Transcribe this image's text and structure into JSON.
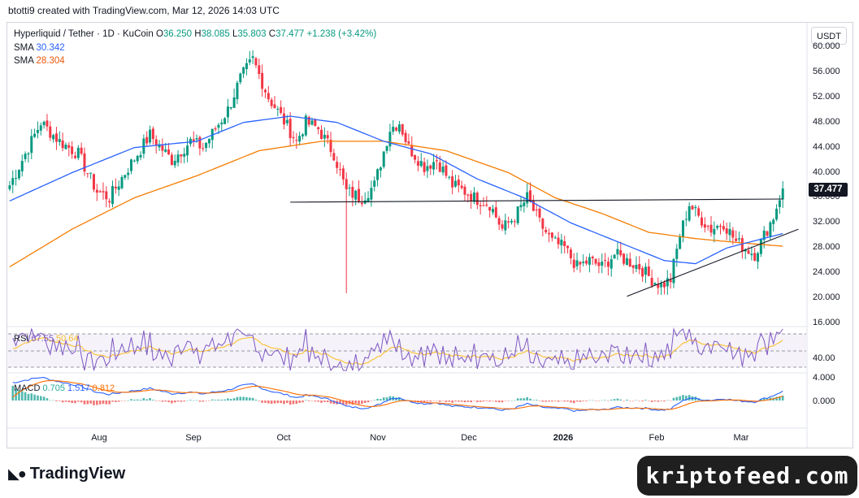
{
  "header": {
    "credit": "btotti9 created with TradingView.com, Mar 12, 2026 14:03 UTC"
  },
  "legend": {
    "symbol": "Hyperliquid / Tether · 1D · KuCoin",
    "o_label": "O",
    "o_value": "36.250",
    "h_label": "H",
    "h_value": "38.085",
    "l_label": "L",
    "l_value": "35.803",
    "c_label": "C",
    "c_value": "37.477",
    "change": "+1.238 (+3.42%)",
    "sma1_label": "SMA",
    "sma1_value": "30.342",
    "sma2_label": "SMA",
    "sma2_value": "28.304"
  },
  "currency_button": "USDT",
  "last_price": "37.477",
  "rsi": {
    "label": "RSI",
    "value": "67.55",
    "signal": "50.64",
    "tick": "40.00"
  },
  "macd": {
    "label": "MACD",
    "hist": "0.705",
    "macd": "1.517",
    "signal": "0.812",
    "ticks": [
      "4.000",
      "0.000"
    ]
  },
  "colors": {
    "up": "#089981",
    "down": "#f23645",
    "sma_fast": "#2962ff",
    "sma_slow": "#f57c00",
    "rsi": "#7e57c2",
    "rsi_signal": "#fbc02d"
  },
  "footer": {
    "brand": "TradingView",
    "watermark": "kriptofeed.com"
  },
  "chart_data": {
    "type": "candlestick",
    "x_ticks": [
      "Aug",
      "Sep",
      "Oct",
      "Nov",
      "Dec",
      "2026",
      "Feb",
      "Mar"
    ],
    "y_ticks": [
      "16.000",
      "20.000",
      "24.000",
      "28.000",
      "32.000",
      "36.000",
      "40.000",
      "44.000",
      "48.000",
      "52.000",
      "56.000",
      "60.000"
    ],
    "ylim": [
      16,
      60
    ],
    "close_path": [
      [
        0,
        38
      ],
      [
        4,
        42
      ],
      [
        10,
        48
      ],
      [
        16,
        45
      ],
      [
        22,
        43
      ],
      [
        28,
        37
      ],
      [
        32,
        36
      ],
      [
        37,
        40
      ],
      [
        45,
        46
      ],
      [
        52,
        42
      ],
      [
        58,
        45
      ],
      [
        62,
        44
      ],
      [
        70,
        50
      ],
      [
        74,
        55
      ],
      [
        78,
        58
      ],
      [
        83,
        52
      ],
      [
        87,
        49
      ],
      [
        92,
        45
      ],
      [
        95,
        48
      ],
      [
        99,
        47
      ],
      [
        104,
        43
      ],
      [
        108,
        37
      ],
      [
        113,
        36
      ],
      [
        117,
        38
      ],
      [
        122,
        47
      ],
      [
        125,
        48
      ],
      [
        128,
        44
      ],
      [
        133,
        41
      ],
      [
        137,
        42
      ],
      [
        142,
        38
      ],
      [
        146,
        37
      ],
      [
        149,
        36
      ],
      [
        154,
        35
      ],
      [
        158,
        31
      ],
      [
        162,
        33
      ],
      [
        166,
        36
      ],
      [
        170,
        32
      ],
      [
        174,
        29
      ],
      [
        178,
        28
      ],
      [
        182,
        25
      ],
      [
        186,
        26
      ],
      [
        190,
        25
      ],
      [
        194,
        27
      ],
      [
        198,
        26
      ],
      [
        202,
        25
      ],
      [
        206,
        23
      ],
      [
        209,
        22
      ],
      [
        212,
        23
      ],
      [
        215,
        30
      ],
      [
        218,
        35
      ],
      [
        221,
        33
      ],
      [
        225,
        31
      ],
      [
        229,
        32
      ],
      [
        233,
        29
      ],
      [
        236,
        28
      ],
      [
        239,
        27
      ],
      [
        243,
        31
      ],
      [
        245,
        33
      ],
      [
        247,
        36.2
      ],
      [
        248,
        37.477
      ]
    ],
    "sma_fast": [
      [
        0,
        35.5
      ],
      [
        20,
        40
      ],
      [
        40,
        44
      ],
      [
        60,
        45
      ],
      [
        75,
        48
      ],
      [
        90,
        49
      ],
      [
        105,
        48
      ],
      [
        120,
        45
      ],
      [
        135,
        43
      ],
      [
        150,
        39
      ],
      [
        165,
        36
      ],
      [
        180,
        32
      ],
      [
        195,
        29
      ],
      [
        210,
        26
      ],
      [
        220,
        25.5
      ],
      [
        230,
        28
      ],
      [
        248,
        30.3
      ]
    ],
    "sma_slow": [
      [
        0,
        25
      ],
      [
        20,
        31
      ],
      [
        40,
        36
      ],
      [
        60,
        39.5
      ],
      [
        80,
        43.5
      ],
      [
        100,
        45
      ],
      [
        120,
        45
      ],
      [
        140,
        43.5
      ],
      [
        160,
        40
      ],
      [
        175,
        36
      ],
      [
        190,
        33.5
      ],
      [
        205,
        30.5
      ],
      [
        220,
        29.5
      ],
      [
        235,
        28.8
      ],
      [
        248,
        28.3
      ]
    ],
    "trendlines": [
      {
        "name": "resistance",
        "from": [
          90,
          35.3
        ],
        "to": [
          248,
          35.8
        ]
      },
      {
        "name": "support",
        "from": [
          198,
          20.3
        ],
        "to": [
          253,
          31
        ]
      }
    ]
  }
}
